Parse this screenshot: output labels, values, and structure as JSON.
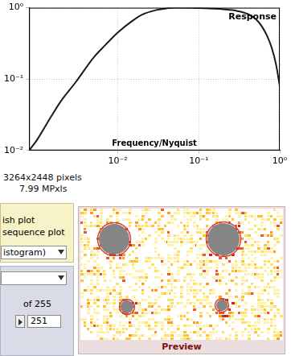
{
  "chart_data": {
    "type": "line",
    "x_label": "Frequency/Nyquist",
    "log": true,
    "grid": true,
    "legend": "upper right",
    "xlim": [
      0.0008,
      1
    ],
    "ylim": [
      0.01,
      1
    ],
    "xticks": [
      {
        "value": 0.01,
        "label": "10⁻²"
      },
      {
        "value": 0.1,
        "label": "10⁻¹"
      },
      {
        "value": 1,
        "label": "10⁰"
      }
    ],
    "yticks": [
      {
        "value": 0.01,
        "label": "10⁻²"
      },
      {
        "value": 0.1,
        "label": "10⁻¹"
      },
      {
        "value": 1,
        "label": "10⁰"
      }
    ],
    "x": [
      0.0008,
      0.001,
      0.0015,
      0.002,
      0.003,
      0.005,
      0.007,
      0.01,
      0.015,
      0.02,
      0.03,
      0.04,
      0.05,
      0.07,
      0.1,
      0.15,
      0.2,
      0.3,
      0.4,
      0.5,
      0.6,
      0.7,
      0.8,
      0.9,
      1
    ],
    "series": [
      {
        "name": "Response",
        "color": "#1a1a1a",
        "values": [
          0.01,
          0.014,
          0.03,
          0.05,
          0.09,
          0.2,
          0.3,
          0.45,
          0.65,
          0.8,
          0.93,
          0.98,
          1.0,
          1.0,
          0.99,
          0.97,
          0.95,
          0.9,
          0.82,
          0.7,
          0.55,
          0.4,
          0.27,
          0.16,
          0.08
        ]
      }
    ]
  },
  "image_info": {
    "size": "3264x2448 pixels",
    "megapixels": "7.99 MPxls"
  },
  "left_panel": {
    "options": [
      "ish plot",
      "sequence plot"
    ],
    "dropdown": "istogram)"
  },
  "counter": {
    "text": "of 255",
    "value": 251
  },
  "preview": {
    "label": "Preview"
  }
}
